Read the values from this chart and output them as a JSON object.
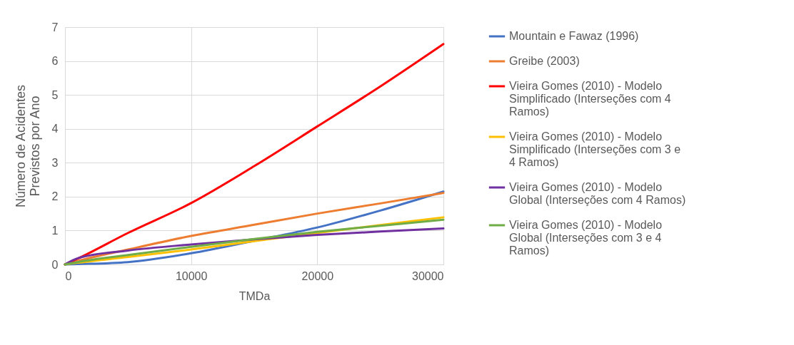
{
  "chart_data": {
    "type": "line",
    "xlabel": "TMDa",
    "ylabel": "Número de Acidentes Previstos por Ano",
    "x": [
      0,
      1000,
      5000,
      10000,
      15000,
      20000,
      25000,
      30000
    ],
    "xlim": [
      0,
      30000
    ],
    "xticks": [
      0,
      10000,
      20000,
      30000
    ],
    "ylim": [
      0,
      7
    ],
    "yticks": [
      0,
      1,
      2,
      3,
      4,
      5,
      6,
      7
    ],
    "grid": true,
    "legend": "right",
    "line_style": "solid",
    "series": [
      {
        "name": "Mountain e Fawaz (1996)",
        "color": "#4472c4",
        "values": [
          0,
          0.01,
          0.07,
          0.33,
          0.7,
          1.09,
          1.59,
          2.15
        ]
      },
      {
        "name": "Greibe (2003)",
        "color": "#ed7d31",
        "values": [
          0,
          0.1,
          0.44,
          0.84,
          1.17,
          1.5,
          1.8,
          2.11
        ]
      },
      {
        "name": "Vieira Gomes (2010) - Modelo Simplificado (Interseções com 4 Ramos)",
        "color": "#ff0000",
        "values": [
          0,
          0.17,
          0.93,
          1.81,
          2.9,
          4.07,
          5.25,
          6.5
        ]
      },
      {
        "name": "Vieira Gomes (2010) - Modelo Simplificado (Interseções com 3 e 4 Ramos)",
        "color": "#ffc000",
        "values": [
          0,
          0.05,
          0.22,
          0.44,
          0.69,
          0.93,
          1.16,
          1.39
        ]
      },
      {
        "name": "Vieira Gomes (2010) - Modelo Global (Interseções com 4 Ramos)",
        "color": "#7030a0",
        "values": [
          0,
          0.18,
          0.41,
          0.59,
          0.74,
          0.87,
          0.97,
          1.06
        ]
      },
      {
        "name": "Vieira Gomes (2010) - Modelo Global (Interseções com 3 e 4 Ramos)",
        "color": "#70ad47",
        "values": [
          0,
          0.07,
          0.28,
          0.52,
          0.75,
          0.96,
          1.14,
          1.32
        ]
      }
    ]
  }
}
